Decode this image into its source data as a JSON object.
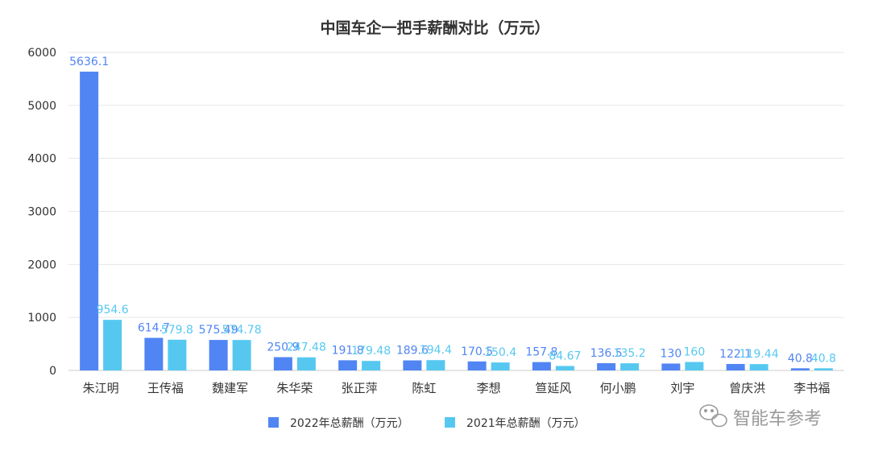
{
  "chart_data": {
    "type": "bar",
    "title": "中国车企一把手薪酬对比（万元）",
    "categories": [
      "朱江明",
      "王传福",
      "魏建军",
      "朱华荣",
      "张正萍",
      "陈虹",
      "李想",
      "笪延风",
      "何小鹏",
      "刘宇",
      "曾庆洪",
      "李书福"
    ],
    "series": [
      {
        "name": "2022年总薪酬（万元）",
        "color": "#5185F4",
        "values": [
          5636.1,
          614.7,
          575.49,
          250.9,
          191.8,
          189.6,
          170.5,
          157.8,
          136.5,
          130,
          122.1,
          40.8
        ],
        "labels": [
          "5636.1",
          "614.7",
          "575.49",
          "250.9",
          "191.8",
          "189.6",
          "170.5",
          "157.8",
          "136.5",
          "130",
          "122.1",
          "40.8"
        ]
      },
      {
        "name": "2021年总薪酬（万元）",
        "color": "#56C8F0",
        "values": [
          954.6,
          579.8,
          574.78,
          247.48,
          179.48,
          194.4,
          150.4,
          84.67,
          135.2,
          160,
          119.44,
          40.8
        ],
        "labels": [
          "954.6",
          "579.8",
          "574.78",
          "247.48",
          "179.48",
          "194.4",
          "150.4",
          "84.67",
          "135.2",
          "160",
          "119.44",
          "40.8"
        ]
      }
    ],
    "y_ticks": [
      "0",
      "1000",
      "2000",
      "3000",
      "4000",
      "5000",
      "6000"
    ],
    "ylim": [
      0,
      6000
    ],
    "grid": true,
    "legend_position": "bottom"
  },
  "watermark": {
    "icon": "wechat-icon",
    "text": "智能车参考"
  }
}
